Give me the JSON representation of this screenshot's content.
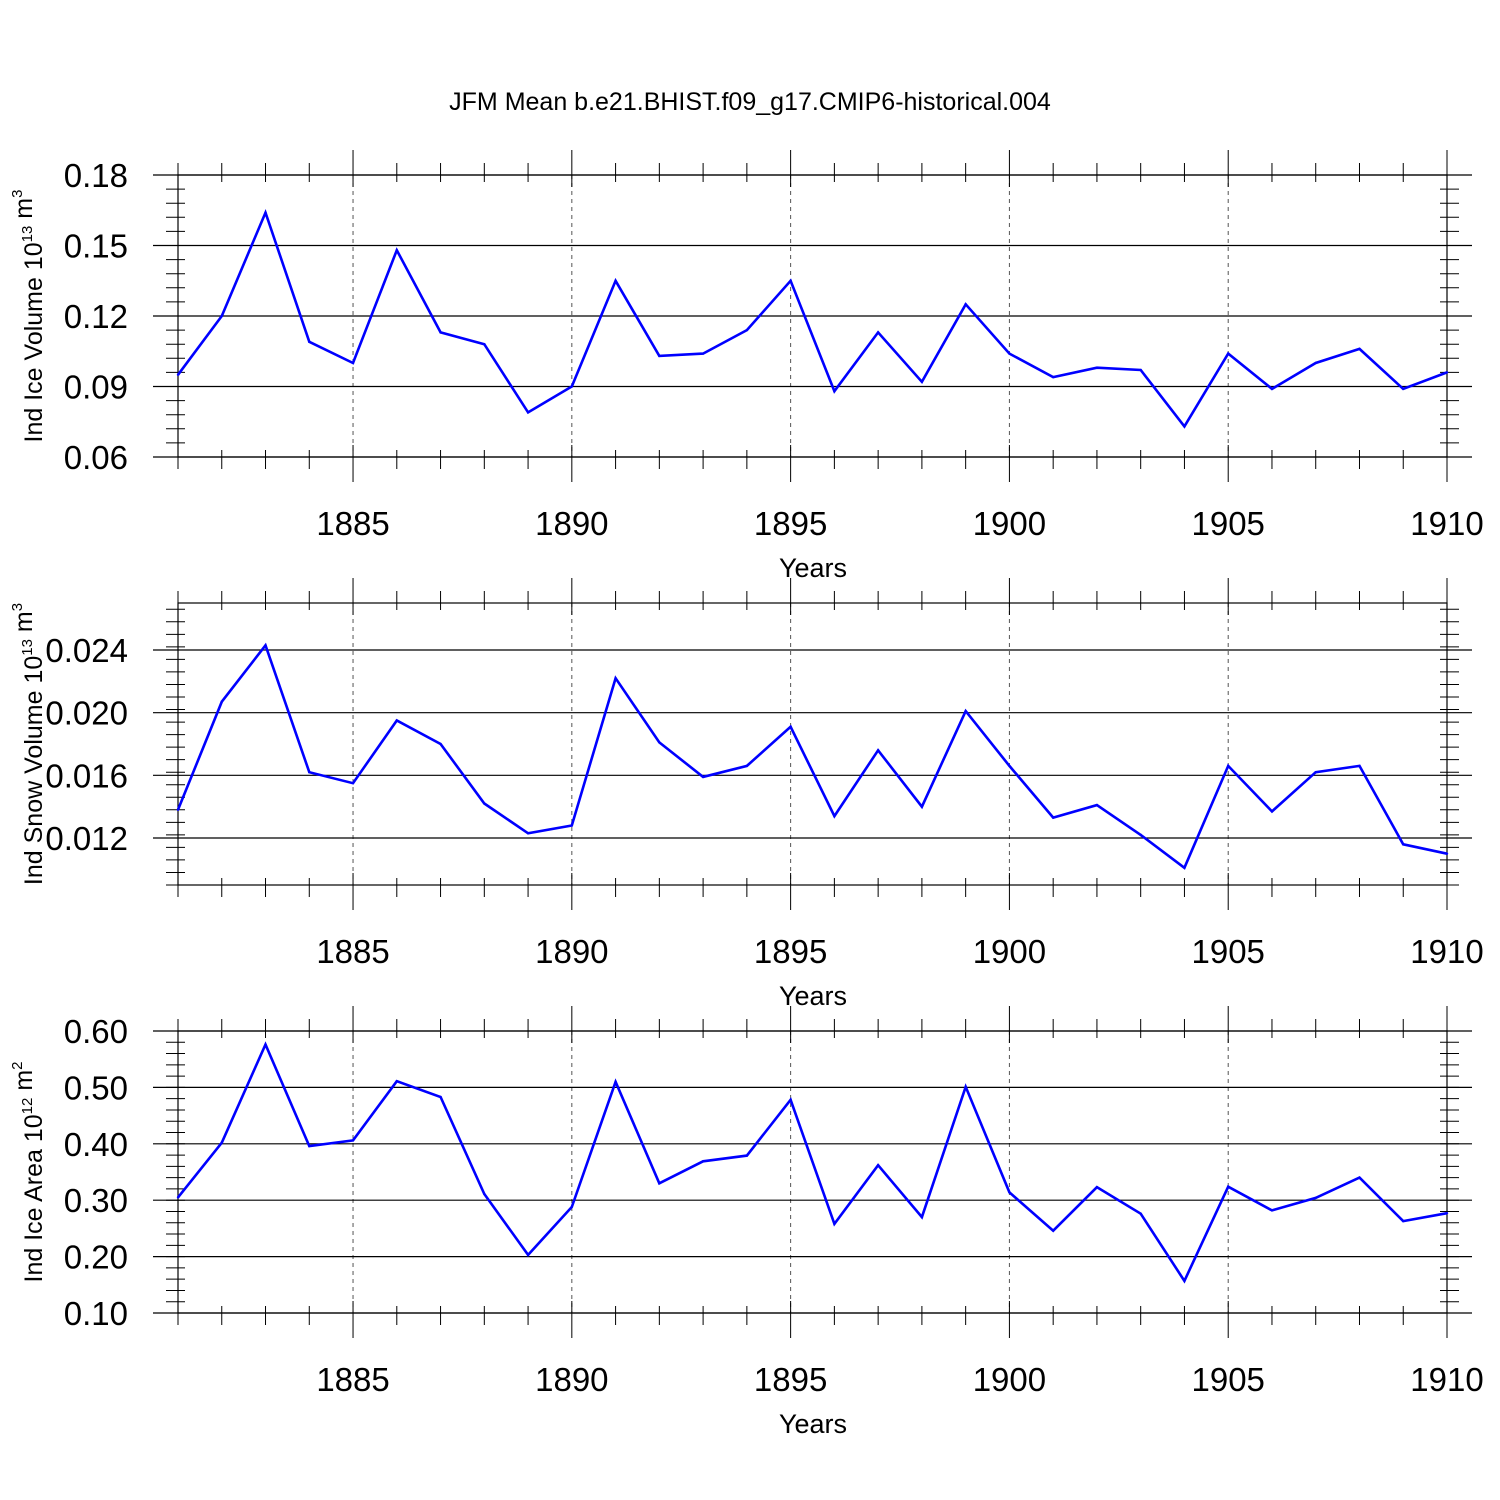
{
  "title": "JFM Mean b.e21.BHIST.f09_g17.CMIP6-historical.004",
  "colors": {
    "line": "#0000ff",
    "axis": "#000000",
    "grid": "#555555"
  },
  "chart_data": [
    {
      "type": "line",
      "ylabel": "Ind Ice Volume 10",
      "ylabel_exp": "13",
      "ylabel_unit": " m",
      "ylabel_unit_exp": "3",
      "xlabel": "Years",
      "xlim": [
        1881,
        1910
      ],
      "ylim": [
        0.06,
        0.18
      ],
      "yticks": [
        "0.06",
        "0.09",
        "0.12",
        "0.15",
        "0.18"
      ],
      "xticks": [
        "1885",
        "1890",
        "1895",
        "1900",
        "1905",
        "1910"
      ],
      "grid": "vertical dashed at major x ticks",
      "x": [
        1881,
        1882,
        1883,
        1884,
        1885,
        1886,
        1887,
        1888,
        1889,
        1890,
        1891,
        1892,
        1893,
        1894,
        1895,
        1896,
        1897,
        1898,
        1899,
        1900,
        1901,
        1902,
        1903,
        1904,
        1905,
        1906,
        1907,
        1908,
        1909,
        1910
      ],
      "series": [
        {
          "values": [
            0.095,
            0.12,
            0.164,
            0.109,
            0.1,
            0.148,
            0.113,
            0.108,
            0.079,
            0.09,
            0.135,
            0.103,
            0.104,
            0.114,
            0.135,
            0.088,
            0.113,
            0.092,
            0.125,
            0.104,
            0.094,
            0.098,
            0.097,
            0.073,
            0.104,
            0.089,
            0.1,
            0.106,
            0.089,
            0.096
          ]
        }
      ]
    },
    {
      "type": "line",
      "ylabel": "Ind Snow Volume 10",
      "ylabel_exp": "13",
      "ylabel_unit": " m",
      "ylabel_unit_exp": "3",
      "xlabel": "Years",
      "xlim": [
        1881,
        1910
      ],
      "ylim": [
        0.009,
        0.027
      ],
      "yticks": [
        "0.012",
        "0.016",
        "0.020",
        "0.024"
      ],
      "xticks": [
        "1885",
        "1890",
        "1895",
        "1900",
        "1905",
        "1910"
      ],
      "grid": "vertical dashed at major x ticks",
      "x": [
        1881,
        1882,
        1883,
        1884,
        1885,
        1886,
        1887,
        1888,
        1889,
        1890,
        1891,
        1892,
        1893,
        1894,
        1895,
        1896,
        1897,
        1898,
        1899,
        1900,
        1901,
        1902,
        1903,
        1904,
        1905,
        1906,
        1907,
        1908,
        1909,
        1910
      ],
      "series": [
        {
          "values": [
            0.0138,
            0.0207,
            0.0243,
            0.0162,
            0.0155,
            0.0195,
            0.018,
            0.0142,
            0.0123,
            0.0128,
            0.0222,
            0.0181,
            0.0159,
            0.0166,
            0.0191,
            0.0134,
            0.0176,
            0.014,
            0.0201,
            0.0166,
            0.0133,
            0.0141,
            0.0122,
            0.0101,
            0.0166,
            0.0137,
            0.0162,
            0.0166,
            0.0116,
            0.011
          ]
        }
      ]
    },
    {
      "type": "line",
      "ylabel": "Ind Ice Area 10",
      "ylabel_exp": "12",
      "ylabel_unit": " m",
      "ylabel_unit_exp": "2",
      "xlabel": "Years",
      "xlim": [
        1881,
        1910
      ],
      "ylim": [
        0.1,
        0.6
      ],
      "yticks": [
        "0.10",
        "0.20",
        "0.30",
        "0.40",
        "0.50",
        "0.60"
      ],
      "xticks": [
        "1885",
        "1890",
        "1895",
        "1900",
        "1905",
        "1910"
      ],
      "grid": "vertical dashed at major x ticks",
      "x": [
        1881,
        1882,
        1883,
        1884,
        1885,
        1886,
        1887,
        1888,
        1889,
        1890,
        1891,
        1892,
        1893,
        1894,
        1895,
        1896,
        1897,
        1898,
        1899,
        1900,
        1901,
        1902,
        1903,
        1904,
        1905,
        1906,
        1907,
        1908,
        1909,
        1910
      ],
      "series": [
        {
          "values": [
            0.305,
            0.402,
            0.576,
            0.396,
            0.406,
            0.511,
            0.483,
            0.311,
            0.203,
            0.288,
            0.51,
            0.33,
            0.369,
            0.379,
            0.478,
            0.258,
            0.362,
            0.27,
            0.501,
            0.314,
            0.246,
            0.323,
            0.276,
            0.157,
            0.324,
            0.282,
            0.304,
            0.34,
            0.263,
            0.277
          ]
        }
      ]
    }
  ]
}
